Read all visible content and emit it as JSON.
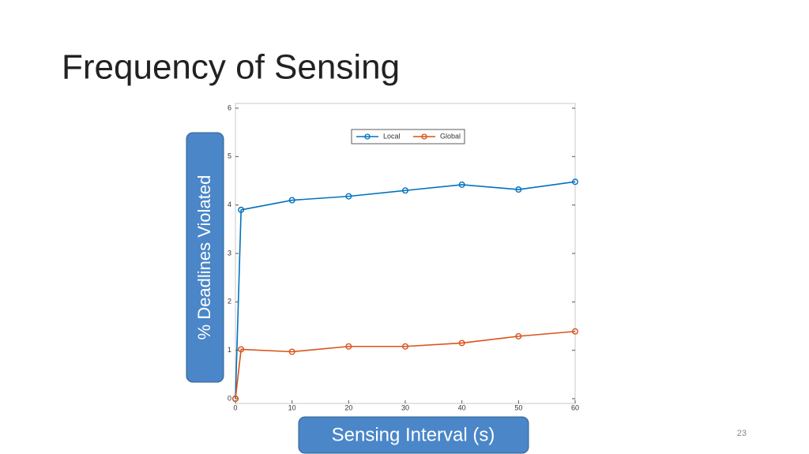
{
  "slide_title": "Frequency of Sensing",
  "page_number": "23",
  "chart_data": {
    "type": "line",
    "xlabel": "Sensing Interval (s)",
    "ylabel": "% Deadlines Violated",
    "x": [
      0,
      1,
      10,
      20,
      30,
      40,
      50,
      60
    ],
    "series": [
      {
        "name": "Local",
        "color": "#0072bd",
        "values": [
          0,
          3.9,
          4.1,
          4.18,
          4.3,
          4.42,
          4.32,
          4.48
        ]
      },
      {
        "name": "Global",
        "color": "#d95319",
        "values": [
          0,
          1.02,
          0.97,
          1.08,
          1.08,
          1.15,
          1.29,
          1.39
        ]
      }
    ],
    "xlim": [
      0,
      60
    ],
    "ylim": [
      0,
      6
    ],
    "xticks": [
      0,
      10,
      20,
      30,
      40,
      50,
      60
    ],
    "yticks": [
      0,
      1,
      2,
      3,
      4,
      5,
      6
    ],
    "legend": "top",
    "label_box_color": "#4a86c8"
  }
}
